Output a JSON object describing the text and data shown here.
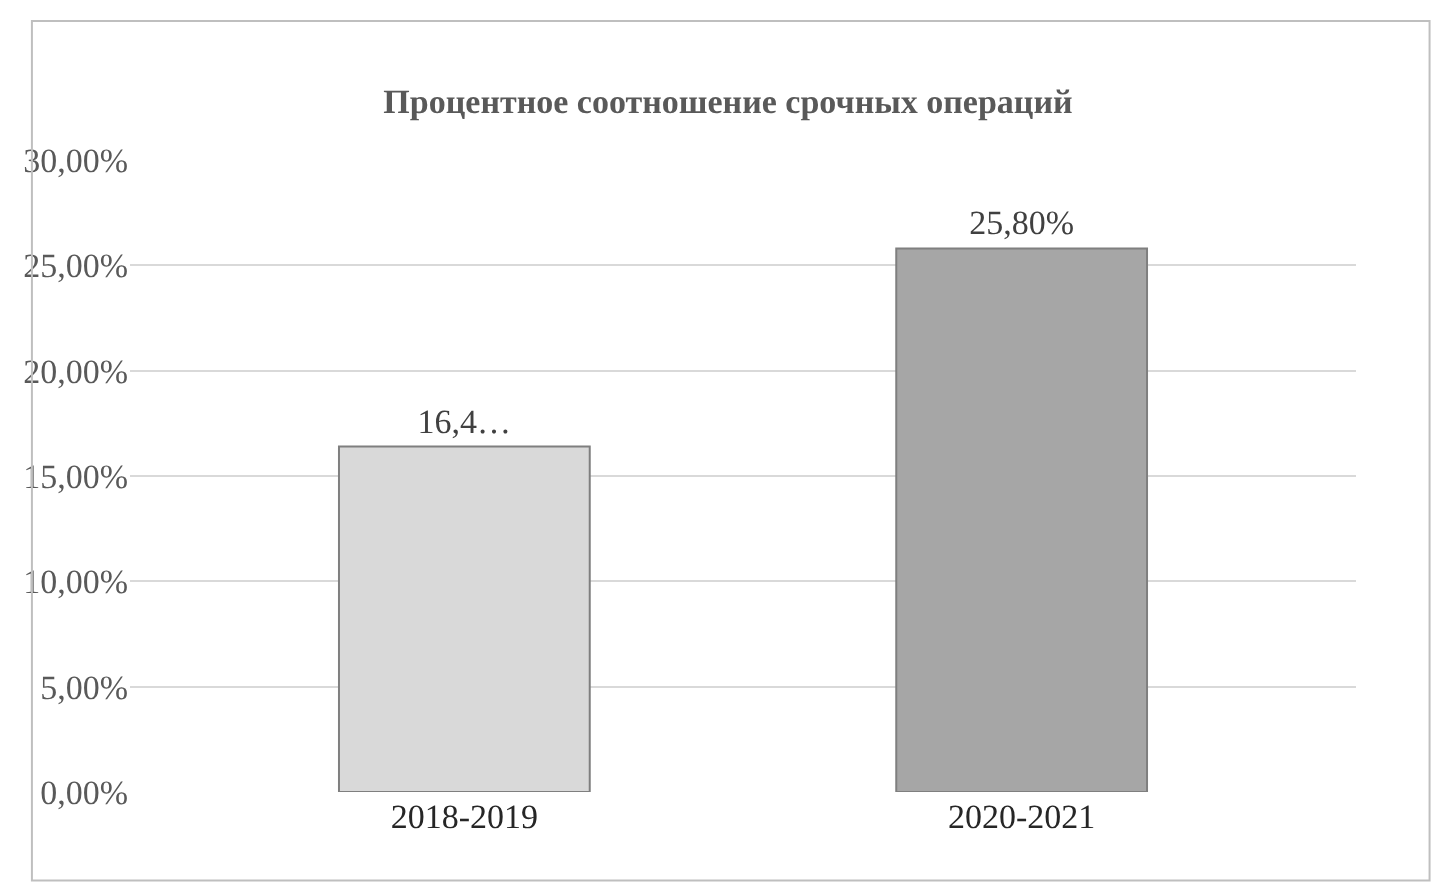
{
  "chart_data": {
    "type": "bar",
    "title": "Процентное соотношение срочных операций",
    "categories": [
      "2018-2019",
      "2020-2021"
    ],
    "values": [
      16.4,
      25.8
    ],
    "colors": [
      "#d9d9d9",
      "#a6a6a6"
    ],
    "value_labels": [
      "16,4…",
      "25,80%"
    ],
    "ylim": [
      0,
      30
    ],
    "yticks": [
      {
        "value": 0,
        "label": "0,00%"
      },
      {
        "value": 5,
        "label": "5,00%"
      },
      {
        "value": 10,
        "label": "10,00%"
      },
      {
        "value": 15,
        "label": "15,00%"
      },
      {
        "value": 20,
        "label": "20,00%"
      },
      {
        "value": 25,
        "label": "25,00%"
      },
      {
        "value": 30,
        "label": "30,00%"
      }
    ],
    "grid": "y"
  }
}
